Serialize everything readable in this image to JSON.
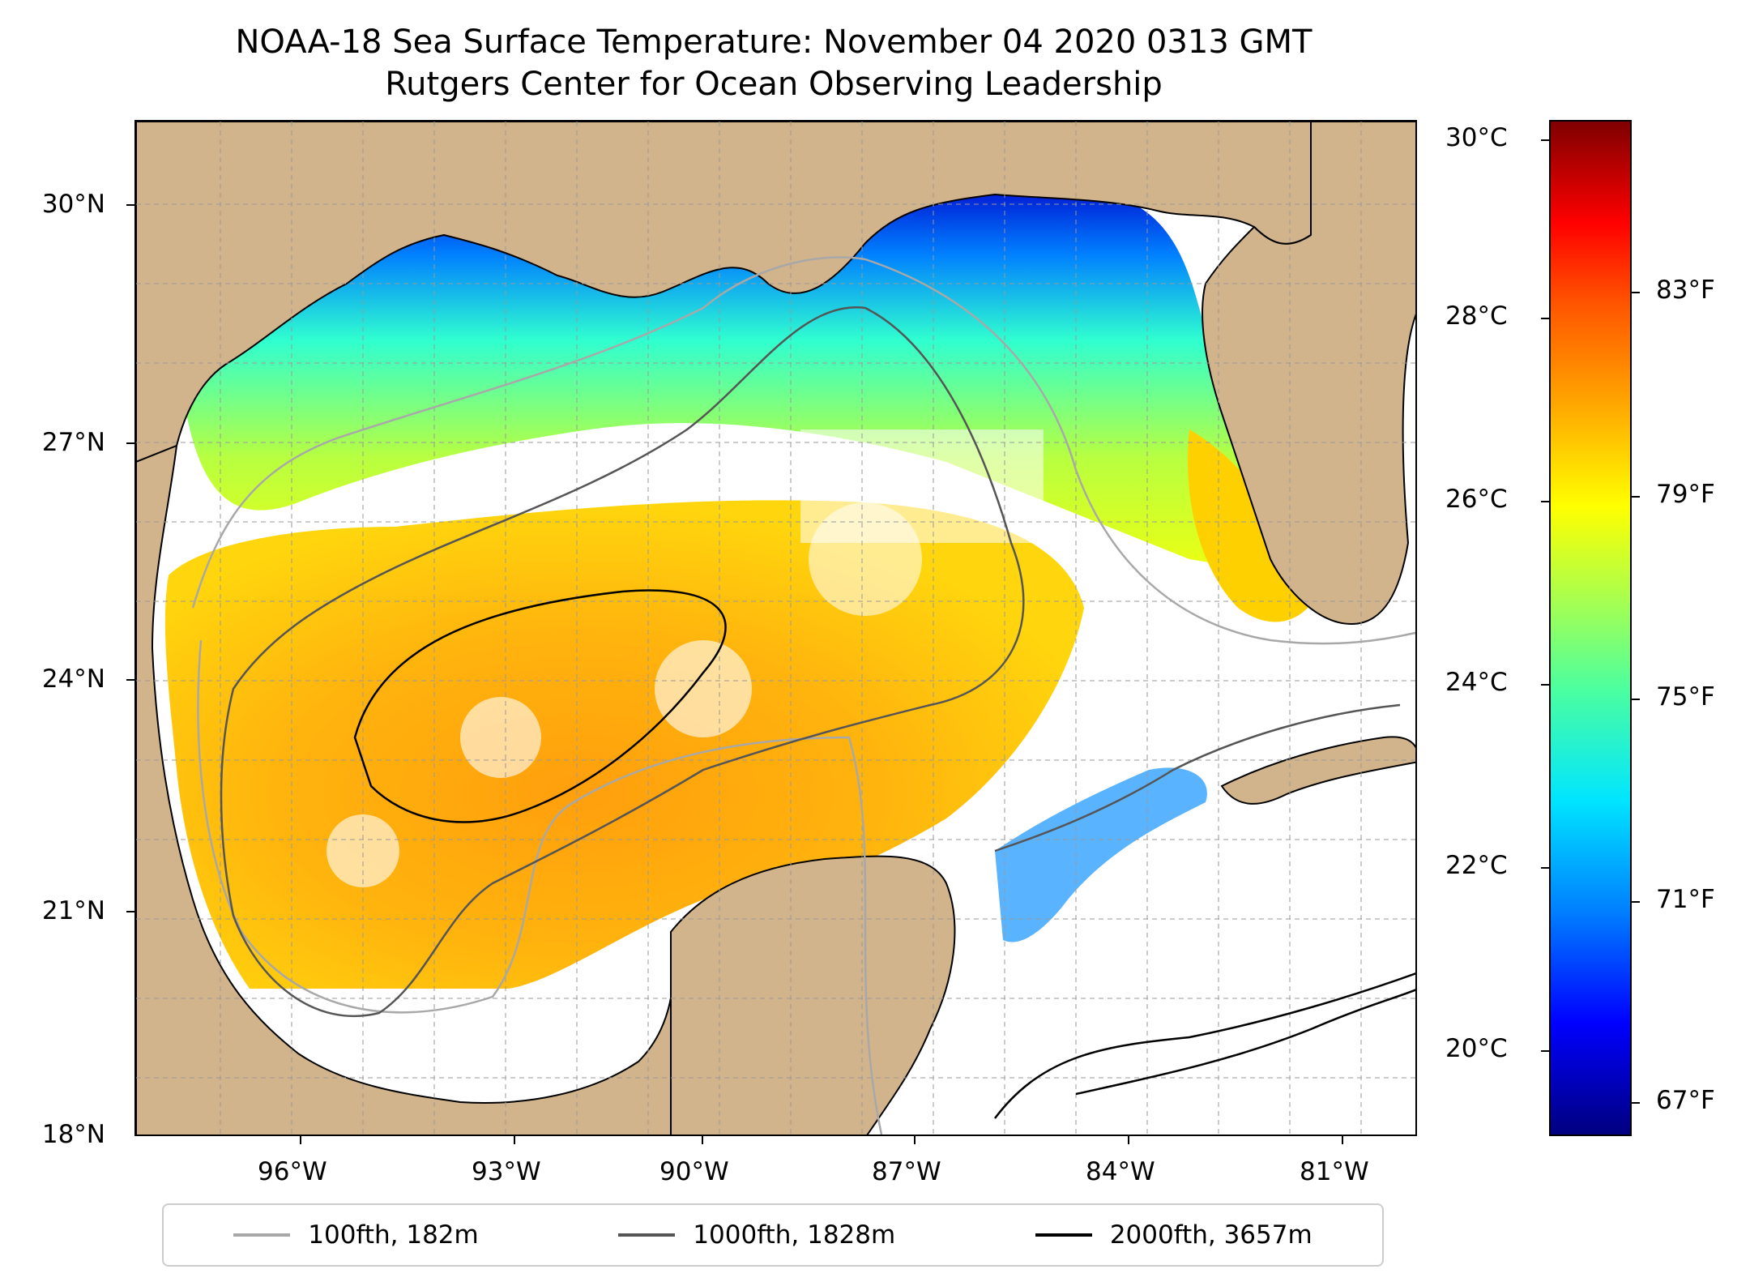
{
  "title": "NOAA-18 Sea Surface Temperature: November 04 2020 0313 GMT",
  "subtitle": "Rutgers Center for Ocean Observing Leadership",
  "map": {
    "lat_labels": [
      "30°N",
      "27°N",
      "24°N",
      "21°N",
      "18°N"
    ],
    "lon_labels": [
      "96°W",
      "93°W",
      "90°W",
      "87°W",
      "84°W",
      "81°W"
    ],
    "land_color": "#d2b48c",
    "no_data_color": "#ffffff"
  },
  "colorbar": {
    "celsius_labels": [
      "30°C",
      "28°C",
      "26°C",
      "24°C",
      "22°C",
      "20°C"
    ],
    "fahrenheit_labels": [
      "83°F",
      "79°F",
      "75°F",
      "71°F",
      "67°F"
    ],
    "colormap": "jet"
  },
  "legend": {
    "items": [
      {
        "label": "100fth, 182m",
        "color": "#a8a8a8"
      },
      {
        "label": "1000fth, 1828m",
        "color": "#555555"
      },
      {
        "label": "2000fth, 3657m",
        "color": "#000000"
      }
    ]
  }
}
